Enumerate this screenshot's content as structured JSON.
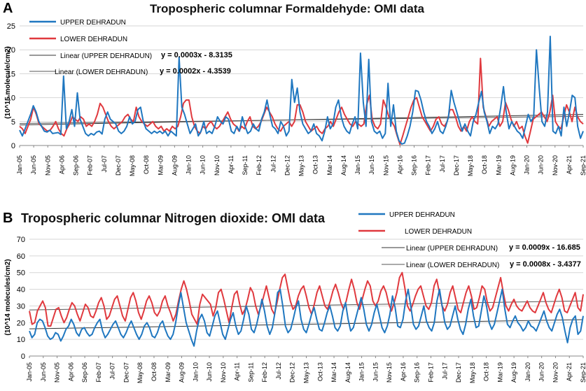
{
  "chart_data": [
    {
      "type": "line",
      "panel_label": "A",
      "title": "Tropospheric columnar Formaldehyde: OMI data",
      "ylabel": "(10^15 molecule/cm2)",
      "xlabel": "",
      "ylim": [
        0,
        25
      ],
      "yticks": [
        0,
        5,
        10,
        15,
        20,
        25
      ],
      "xtick_labels": [
        "Jan-05",
        "Jun-05",
        "Nov-05",
        "Apr-06",
        "Sep-06",
        "Feb-07",
        "Jul-07",
        "Dec-07",
        "May-08",
        "Oct-08",
        "Mar-09",
        "Aug-09",
        "Jan-10",
        "Jun-10",
        "Nov-10",
        "Apr-11",
        "Sep-11",
        "Feb-12",
        "Jul-12",
        "Dec-12",
        "May-13",
        "Oct-13",
        "Mar-14",
        "Aug-14",
        "Jan-15",
        "Jun-15",
        "Nov-15",
        "Apr-16",
        "Sep-16",
        "Feb-17",
        "Jul-17",
        "Dec-17",
        "May-18",
        "Oct-18",
        "Mar-19",
        "Aug-19",
        "Jan-20",
        "Jun-20",
        "Nov-20",
        "Apr-21",
        "Sep-21"
      ],
      "series": [
        {
          "name": "UPPER DEHRADUN",
          "color": "#1f77c0",
          "values": [
            3.2,
            2.0,
            3.5,
            5.0,
            6.5,
            8.3,
            7.0,
            5.0,
            4.0,
            3.0,
            2.8,
            3.2,
            2.5,
            2.6,
            2.7,
            2.3,
            14.5,
            3.5,
            5.0,
            7.5,
            4.0,
            11.0,
            5.5,
            4.0,
            2.5,
            2.0,
            2.5,
            2.2,
            2.8,
            3.0,
            2.4,
            5.5,
            7.0,
            5.5,
            5.0,
            4.5,
            3.0,
            2.5,
            3.0,
            4.0,
            6.0,
            4.5,
            5.0,
            7.5,
            8.0,
            5.0,
            3.5,
            3.0,
            2.5,
            3.0,
            2.6,
            3.0,
            2.5,
            3.0,
            2.0,
            3.0,
            2.5,
            2.0,
            18.5,
            8.0,
            6.5,
            4.5,
            2.5,
            3.5,
            4.5,
            2.0,
            3.0,
            5.0,
            2.5,
            3.0,
            2.5,
            4.0,
            6.0,
            5.0,
            4.5,
            6.0,
            5.5,
            3.0,
            2.5,
            4.0,
            3.0,
            6.0,
            4.0,
            2.5,
            3.0,
            4.5,
            3.5,
            3.0,
            5.5,
            7.0,
            9.5,
            6.5,
            4.0,
            3.5,
            2.5,
            5.0,
            4.0,
            2.0,
            3.0,
            13.8,
            9.0,
            12.0,
            7.0,
            4.5,
            3.5,
            2.5,
            3.0,
            4.5,
            2.5,
            2.0,
            1.0,
            3.0,
            6.0,
            3.5,
            4.5,
            8.0,
            9.5,
            6.0,
            4.0,
            3.0,
            2.5,
            4.5,
            6.0,
            3.5,
            19.3,
            9.0,
            4.0,
            18.0,
            5.0,
            3.0,
            2.5,
            3.0,
            1.5,
            2.5,
            13.0,
            4.0,
            8.5,
            3.0,
            1.0,
            0.3,
            0.5,
            2.0,
            4.0,
            7.0,
            11.5,
            11.3,
            9.5,
            7.0,
            5.0,
            4.0,
            2.5,
            3.5,
            5.0,
            3.0,
            2.5,
            4.0,
            6.0,
            11.5,
            9.0,
            7.0,
            5.0,
            3.0,
            4.5,
            3.0,
            2.0,
            5.0,
            6.5,
            9.0,
            11.3,
            7.0,
            5.0,
            2.5,
            4.0,
            3.5,
            4.5,
            8.0,
            12.3,
            7.0,
            3.5,
            5.0,
            4.0,
            3.0,
            2.5,
            1.5,
            4.0,
            6.5,
            5.0,
            6.0,
            20.0,
            12.0,
            5.0,
            4.0,
            7.0,
            22.8,
            3.0,
            2.5,
            4.0,
            2.0,
            8.0,
            4.0,
            7.0,
            10.5,
            10.0,
            4.0,
            1.5,
            3.0
          ]
        },
        {
          "name": "LOWER DEHRADUN",
          "color": "#e0393e",
          "values": [
            4.0,
            3.5,
            2.5,
            4.0,
            5.5,
            8.0,
            6.5,
            4.5,
            4.0,
            3.5,
            3.0,
            3.2,
            4.0,
            5.0,
            3.5,
            2.5,
            2.0,
            3.5,
            4.5,
            6.0,
            5.5,
            5.0,
            6.0,
            5.5,
            4.0,
            4.5,
            4.0,
            5.0,
            6.5,
            8.8,
            8.0,
            6.5,
            5.0,
            4.0,
            3.5,
            4.0,
            4.5,
            5.0,
            6.0,
            6.5,
            5.5,
            5.0,
            8.0,
            6.0,
            5.0,
            4.5,
            4.0,
            4.5,
            5.0,
            4.0,
            3.5,
            4.0,
            3.0,
            3.5,
            3.0,
            4.0,
            3.5,
            4.0,
            6.0,
            8.8,
            9.5,
            9.5,
            6.0,
            4.0,
            3.0,
            2.5,
            4.0,
            3.5,
            4.5,
            5.0,
            4.0,
            3.5,
            4.0,
            5.0,
            6.0,
            7.0,
            5.5,
            4.5,
            4.0,
            3.0,
            4.0,
            3.5,
            5.0,
            6.0,
            4.0,
            3.5,
            4.0,
            5.0,
            6.5,
            8.0,
            7.0,
            6.0,
            4.5,
            3.5,
            3.0,
            4.0,
            4.5,
            5.0,
            4.0,
            5.0,
            8.5,
            8.5,
            7.0,
            5.0,
            4.0,
            3.0,
            3.5,
            4.0,
            3.0,
            2.5,
            3.5,
            4.0,
            5.0,
            4.0,
            5.5,
            7.0,
            8.0,
            6.5,
            5.5,
            4.5,
            4.0,
            5.0,
            4.5,
            4.0,
            4.5,
            8.5,
            10.5,
            5.5,
            4.0,
            3.5,
            4.5,
            9.5,
            8.0,
            6.0,
            5.0,
            4.0,
            2.0,
            0.2,
            2.0,
            4.0,
            6.0,
            8.0,
            9.5,
            10.0,
            8.0,
            6.0,
            5.0,
            4.0,
            3.0,
            4.0,
            5.5,
            6.0,
            4.5,
            4.0,
            5.0,
            7.5,
            7.5,
            6.0,
            4.0,
            3.0,
            4.0,
            3.0,
            5.0,
            6.0,
            5.0,
            4.5,
            18.2,
            8.0,
            6.0,
            4.0,
            5.0,
            5.5,
            6.0,
            4.0,
            5.0,
            9.0,
            7.5,
            5.5,
            4.0,
            5.0,
            3.5,
            4.0,
            2.0,
            0.5,
            3.0,
            5.5,
            6.0,
            6.5,
            7.0,
            6.0,
            5.0,
            7.0,
            10.5,
            5.0,
            4.0,
            3.5,
            6.0,
            8.5,
            7.0,
            5.0,
            8.0,
            6.0,
            5.0,
            4.5
          ]
        }
      ],
      "trendlines": [
        {
          "label": "Linear (UPPER DEHRADUN)",
          "equation": "y = 0.0003x - 8.3135",
          "start": 4.3,
          "end": 6.5,
          "color": "#333333"
        },
        {
          "label": "Linear (LOWER DEHRADUN)",
          "equation": "y = 0.0002x - 4.3539",
          "start": 4.6,
          "end": 6.1,
          "color": "#555555"
        }
      ],
      "legend": "top-left"
    },
    {
      "type": "line",
      "panel_label": "B",
      "title": "Tropospheric columnar Nitrogen dioxide: OMI data",
      "ylabel": "(10^14 molecules/cm2)",
      "xlabel": "",
      "ylim": [
        0,
        70
      ],
      "yticks": [
        0,
        10,
        20,
        30,
        40,
        50,
        60,
        70
      ],
      "xtick_labels": [
        "Jan-05",
        "Jun-05",
        "Nov-05",
        "Apr-06",
        "Sep-06",
        "Feb-07",
        "Jul-07",
        "Dec-07",
        "May-08",
        "Oct-08",
        "Mar-09",
        "Aug-09",
        "Jan-10",
        "Jun-10",
        "Nov-10",
        "Apr-11",
        "Sep-11",
        "Feb-12",
        "Jul-12",
        "Dec-12",
        "May-13",
        "Oct-13",
        "Mar-14",
        "Aug-14",
        "Jan-15",
        "Jun-15",
        "Nov-15",
        "Apr-16",
        "Sep-16",
        "Feb-17",
        "Jul-17",
        "Dec-17",
        "May-18",
        "Oct-18",
        "Mar-19",
        "Aug-19",
        "Jan-20",
        "Jun-20",
        "Nov-20",
        "Apr-21",
        "Sep-21"
      ],
      "series": [
        {
          "name": "UPPER DEHRADUN",
          "color": "#1f77c0",
          "values": [
            15,
            11,
            13,
            20,
            22,
            21,
            17,
            12,
            10,
            11,
            14,
            13,
            9,
            12,
            16,
            18,
            22,
            19,
            14,
            12,
            16,
            17,
            14,
            12,
            13,
            17,
            20,
            22,
            15,
            11,
            13,
            16,
            19,
            21,
            17,
            13,
            11,
            14,
            18,
            21,
            17,
            13,
            10,
            13,
            18,
            20,
            17,
            12,
            11,
            14,
            19,
            21,
            16,
            12,
            10,
            13,
            20,
            30,
            38,
            29,
            20,
            15,
            10,
            6,
            15,
            22,
            25,
            21,
            14,
            12,
            18,
            24,
            27,
            20,
            13,
            10,
            16,
            22,
            26,
            18,
            13,
            15,
            22,
            30,
            25,
            16,
            14,
            19,
            26,
            34,
            27,
            18,
            13,
            17,
            26,
            38,
            40,
            30,
            18,
            14,
            16,
            22,
            29,
            33,
            22,
            16,
            14,
            19,
            25,
            29,
            22,
            16,
            15,
            20,
            26,
            30,
            24,
            17,
            15,
            18,
            27,
            32,
            22,
            15,
            17,
            23,
            29,
            35,
            28,
            19,
            15,
            19,
            26,
            31,
            24,
            17,
            14,
            18,
            25,
            36,
            29,
            18,
            17,
            22,
            33,
            40,
            30,
            19,
            16,
            18,
            24,
            30,
            21,
            17,
            15,
            20,
            33,
            40,
            30,
            20,
            16,
            18,
            24,
            30,
            22,
            16,
            13,
            19,
            28,
            34,
            24,
            17,
            18,
            27,
            36,
            30,
            20,
            16,
            19,
            26,
            33,
            40,
            28,
            19,
            17,
            21,
            24,
            20,
            18,
            15,
            17,
            21,
            18,
            17,
            15,
            19,
            23,
            27,
            21,
            17,
            15,
            20,
            25,
            28,
            23,
            15,
            8,
            17,
            22,
            24,
            13,
            15,
            24
          ]
        },
        {
          "name": "LOWER DEHRADUN",
          "color": "#e0393e",
          "values": [
            27,
            19,
            20,
            27,
            30,
            33,
            29,
            18,
            18,
            23,
            28,
            29,
            24,
            20,
            23,
            28,
            32,
            30,
            25,
            21,
            26,
            31,
            29,
            24,
            23,
            27,
            32,
            35,
            30,
            22,
            24,
            29,
            34,
            36,
            30,
            24,
            21,
            28,
            35,
            38,
            33,
            26,
            22,
            27,
            33,
            36,
            32,
            26,
            24,
            27,
            33,
            36,
            30,
            26,
            21,
            25,
            33,
            40,
            45,
            40,
            33,
            25,
            22,
            19,
            31,
            37,
            35,
            33,
            31,
            24,
            29,
            38,
            40,
            34,
            27,
            20,
            29,
            37,
            39,
            31,
            25,
            28,
            34,
            41,
            38,
            30,
            25,
            30,
            36,
            42,
            35,
            28,
            25,
            32,
            40,
            47,
            49,
            41,
            33,
            28,
            30,
            36,
            40,
            42,
            36,
            29,
            25,
            31,
            38,
            42,
            36,
            30,
            28,
            33,
            39,
            43,
            38,
            32,
            28,
            33,
            40,
            46,
            40,
            32,
            28,
            34,
            40,
            45,
            42,
            33,
            30,
            33,
            39,
            42,
            38,
            31,
            27,
            32,
            38,
            47,
            50,
            41,
            30,
            27,
            31,
            36,
            40,
            42,
            36,
            30,
            28,
            32,
            42,
            46,
            38,
            30,
            27,
            31,
            38,
            42,
            35,
            28,
            26,
            32,
            38,
            42,
            36,
            28,
            29,
            35,
            42,
            40,
            32,
            27,
            29,
            35,
            41,
            47,
            38,
            30,
            27,
            31,
            34,
            30,
            28,
            27,
            30,
            33,
            29,
            27,
            26,
            30,
            34,
            38,
            32,
            28,
            26,
            31,
            36,
            40,
            35,
            27,
            26,
            30,
            34,
            38,
            29,
            27,
            37
          ]
        }
      ],
      "trendlines": [
        {
          "label": "Linear (UPPER DEHRADUN)",
          "equation": "y = 0.0009x - 16.685",
          "start": 16.3,
          "end": 21.8,
          "color": "#333333"
        },
        {
          "label": "Linear (LOWER DEHRADUN)",
          "equation": "y = 0.0008x - 3.4377",
          "start": 27.6,
          "end": 33.0,
          "color": "#555555"
        }
      ],
      "legend": "top-right"
    }
  ]
}
